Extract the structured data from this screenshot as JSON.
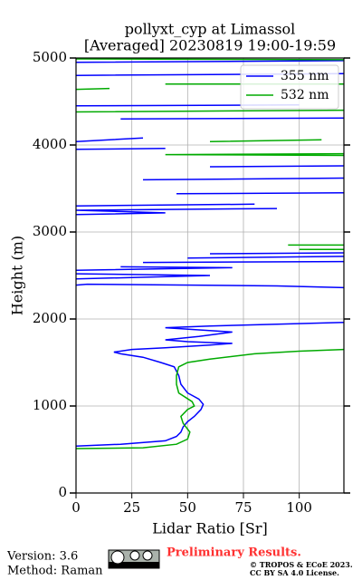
{
  "chart_data": {
    "type": "line",
    "title": [
      "pollyxt_cyp at Limassol",
      "[Averaged] 20230819 19:00-19:59"
    ],
    "x_label": "Lidar Ratio [Sr]",
    "y_label": "Height (m)",
    "xlim": [
      0,
      120
    ],
    "ylim": [
      0,
      5000
    ],
    "xticks": [
      0,
      25,
      50,
      75,
      100
    ],
    "yticks": [
      0,
      1000,
      2000,
      3000,
      4000,
      5000
    ],
    "grid": true,
    "legend": "upper right",
    "series": [
      {
        "name": "355 nm",
        "color": "#0000ff",
        "x": [
          0,
          20,
          40,
          45,
          47,
          48,
          50,
          53,
          56,
          57,
          55,
          50,
          47,
          46,
          44,
          38,
          30,
          20,
          17,
          25,
          40,
          60,
          70,
          50,
          40,
          55,
          70,
          40,
          60,
          90,
          120,
          null,
          0,
          5,
          90,
          120,
          null,
          0,
          60,
          0,
          null,
          0,
          70,
          20,
          null,
          30,
          120,
          null,
          50,
          120,
          null,
          60,
          120,
          null,
          0,
          40,
          0,
          90,
          null,
          0,
          80,
          null,
          45,
          120,
          null,
          30,
          120,
          null,
          60,
          120,
          null,
          0,
          40,
          null,
          0,
          30,
          null,
          20,
          120,
          null,
          0,
          100,
          null,
          0,
          120,
          null,
          0,
          120
        ],
        "y": [
          540,
          560,
          600,
          650,
          700,
          760,
          820,
          880,
          960,
          1020,
          1080,
          1150,
          1250,
          1350,
          1450,
          1500,
          1560,
          1600,
          1620,
          1650,
          1670,
          1700,
          1720,
          1740,
          1760,
          1800,
          1850,
          1900,
          1920,
          1940,
          1960,
          null,
          2390,
          2400,
          2380,
          2360,
          null,
          2460,
          2500,
          2520,
          null,
          2560,
          2590,
          2600,
          null,
          2650,
          2660,
          null,
          2700,
          2720,
          null,
          2750,
          2760,
          null,
          3200,
          3220,
          3250,
          3270,
          null,
          3300,
          3320,
          null,
          3440,
          3450,
          null,
          3600,
          3620,
          null,
          3750,
          3760,
          null,
          3950,
          3960,
          null,
          4040,
          4080,
          null,
          4300,
          4310,
          null,
          4450,
          4460,
          null,
          4800,
          4820,
          null,
          4950,
          4970
        ]
      },
      {
        "name": "532 nm",
        "color": "#00aa00",
        "x": [
          0,
          30,
          45,
          50,
          51,
          48,
          47,
          50,
          53,
          52,
          46,
          45,
          45,
          46,
          50,
          60,
          80,
          100,
          120,
          null,
          100,
          120,
          null,
          95,
          120,
          null,
          120,
          40,
          120,
          null,
          60,
          110,
          null,
          0,
          120,
          null,
          0,
          15,
          null,
          40,
          120,
          null,
          120,
          0
        ],
        "y": [
          510,
          520,
          560,
          620,
          700,
          800,
          880,
          960,
          1000,
          1050,
          1150,
          1250,
          1350,
          1450,
          1500,
          1540,
          1600,
          1630,
          1650,
          null,
          2800,
          2800,
          null,
          2850,
          2850,
          null,
          3880,
          3890,
          3900,
          null,
          4040,
          4060,
          null,
          4380,
          4400,
          null,
          4640,
          4650,
          null,
          4700,
          4700,
          null,
          4980,
          4990
        ]
      }
    ]
  },
  "footer": {
    "version": "Version: 3.6",
    "method": "Method: Raman",
    "status": "Preliminary Results.",
    "copyright": "© TROPOS & ECoE 2023.",
    "license": "CC BY SA 4.0 License."
  }
}
